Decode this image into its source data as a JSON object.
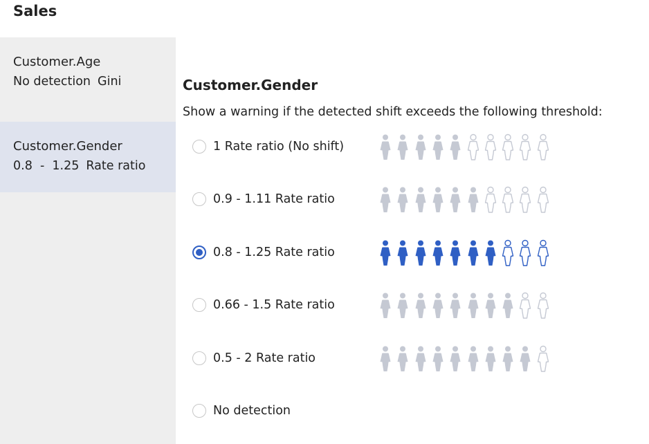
{
  "header": {
    "title": "Sales"
  },
  "sidebar": {
    "items": [
      {
        "name": "Customer.Age",
        "method": "No detection",
        "metric": "Gini",
        "selected": false
      },
      {
        "name": "Customer.Gender",
        "method": "0.8  -  1.25",
        "metric": "Rate ratio",
        "selected": true
      }
    ]
  },
  "main": {
    "title": "Customer.Gender",
    "instruction": "Show a warning if the detected shift exceeds the following threshold:",
    "options": [
      {
        "label": "1 Rate ratio (No shift)",
        "selected": false,
        "filled_of_10": 5
      },
      {
        "label": "0.9 - 1.11 Rate ratio",
        "selected": false,
        "filled_of_10": 6
      },
      {
        "label": "0.8 - 1.25 Rate ratio",
        "selected": true,
        "filled_of_10": 7
      },
      {
        "label": "0.66 - 1.5 Rate ratio",
        "selected": false,
        "filled_of_10": 8
      },
      {
        "label": "0.5 - 2 Rate ratio",
        "selected": false,
        "filled_of_10": 9
      },
      {
        "label": "No detection",
        "selected": false
      }
    ]
  },
  "colors": {
    "accent": "#2f5fc4",
    "person_filled_inactive": "#c5c9d3",
    "person_outline_inactive": "#c5c9d3",
    "person_outline_active": "#2f5fc4",
    "selected_sidebar_bg": "#dfe3ee"
  },
  "icons": {
    "person": "person-icon"
  }
}
